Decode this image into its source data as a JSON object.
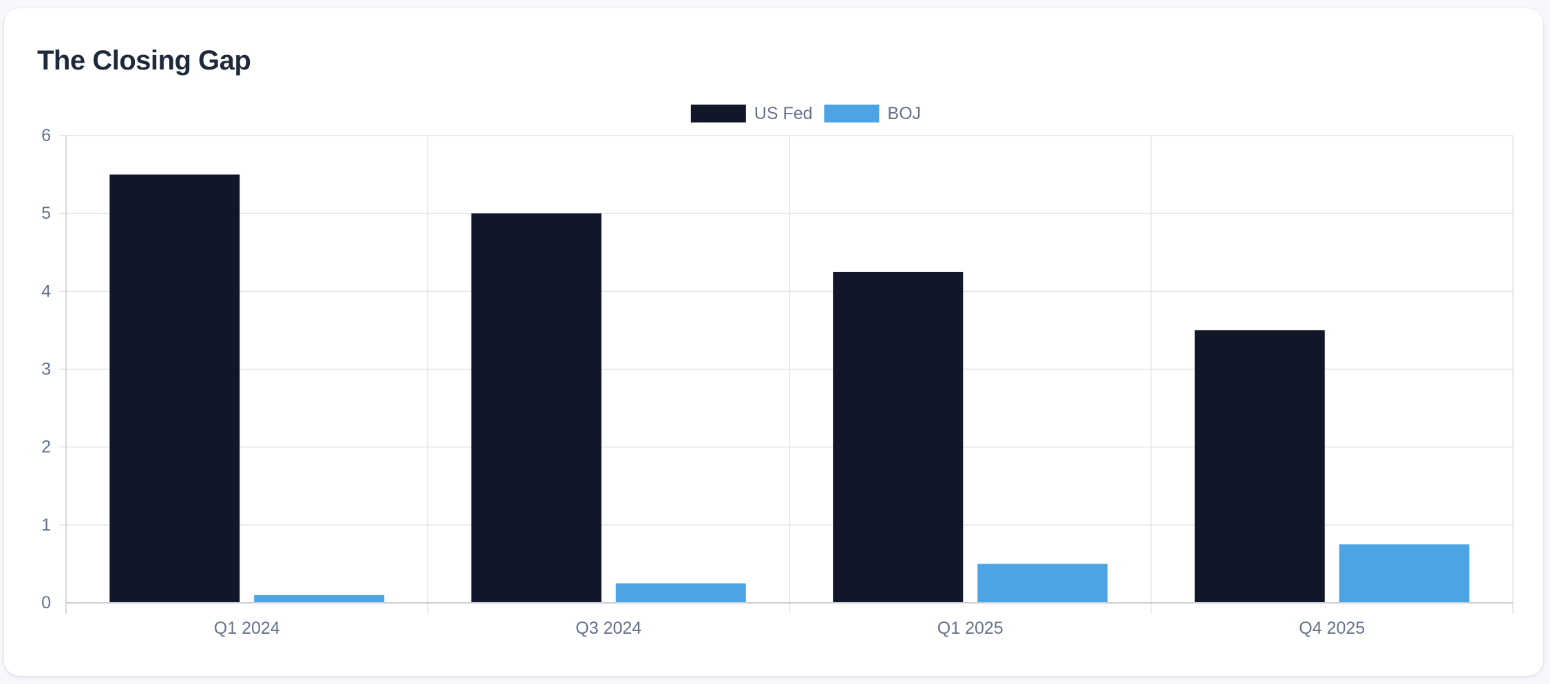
{
  "card": {
    "title": "The Closing Gap"
  },
  "chart_data": {
    "type": "bar",
    "title": "The Closing Gap",
    "categories": [
      "Q1 2024",
      "Q3 2024",
      "Q1 2025",
      "Q4 2025"
    ],
    "series": [
      {
        "name": "US Fed",
        "color": "#111729",
        "values": [
          5.5,
          5.0,
          4.25,
          3.5
        ]
      },
      {
        "name": "BOJ",
        "color": "#4da3e3",
        "values": [
          0.1,
          0.25,
          0.5,
          0.75
        ]
      }
    ],
    "ylim": [
      0,
      6
    ],
    "yticks": [
      0,
      1,
      2,
      3,
      4,
      5,
      6
    ],
    "xlabel": "",
    "ylabel": "",
    "grid": true,
    "legend": "top-center"
  },
  "colors": {
    "grid": "#e2e4e8",
    "axis": "#c9ccd2",
    "tick_text": "#66728a",
    "legend_text": "#66728a",
    "title": "#1e293b"
  }
}
